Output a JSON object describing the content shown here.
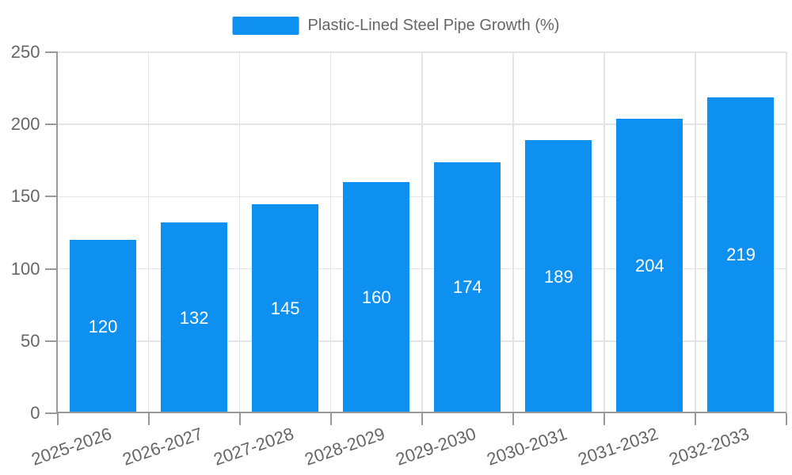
{
  "legend": {
    "label": "Plastic-Lined Steel Pipe Growth (%)"
  },
  "chart_data": {
    "type": "bar",
    "title": "Plastic-Lined Steel Pipe Growth (%)",
    "categories": [
      "2025-2026",
      "2026-2027",
      "2027-2028",
      "2028-2029",
      "2029-2030",
      "2030-2031",
      "2031-2032",
      "2032-2033"
    ],
    "values": [
      120,
      132,
      145,
      160,
      174,
      189,
      204,
      219
    ],
    "xlabel": "",
    "ylabel": "",
    "ylim": [
      0,
      250
    ],
    "yticks": [
      0,
      50,
      100,
      150,
      200,
      250
    ],
    "grid": true,
    "legend_position": "top-center",
    "bar_label_position": "inside-center",
    "x_label_rotation_deg": -19
  },
  "colors": {
    "bar": "#0D90F0",
    "axis_line": "#999999",
    "grid_line": "#E4E4E8",
    "tick_label": "#666666",
    "legend_text": "#666666",
    "bar_label": "#FFFFFF",
    "background": "#FFFFFF"
  }
}
